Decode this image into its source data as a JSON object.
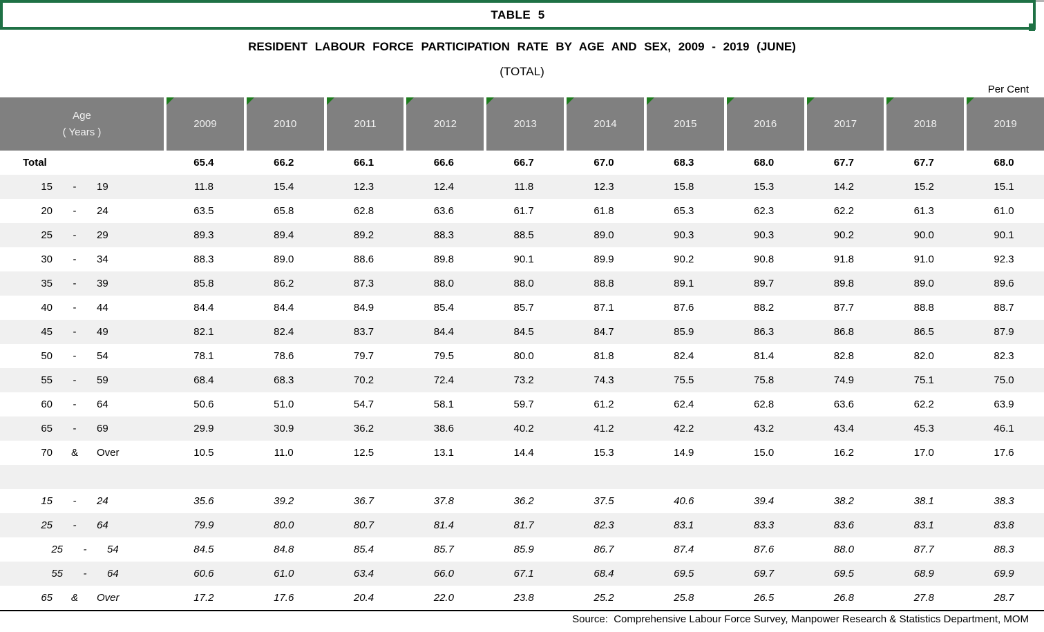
{
  "page": {
    "table_label": "TABLE  5",
    "title": "RESIDENT LABOUR FORCE PARTICIPATION RATE BY AGE AND SEX, 2009 - 2019 (JUNE)",
    "subtitle": "(TOTAL)",
    "unit_label": "Per Cent",
    "source": "Source:  Comprehensive Labour Force Survey, Manpower Research & Statistics Department, MOM"
  },
  "colors": {
    "box_border_green": "#1F7145",
    "corner_triangle_green": "#1E7D1E",
    "header_gray": "#808080",
    "stripe_gray": "#F0F0F0",
    "header_text": "#F2F2F2",
    "body_text": "#000000"
  },
  "table": {
    "age_header": {
      "line1": "Age",
      "line2": "( Years )"
    },
    "years": [
      "2009",
      "2010",
      "2011",
      "2012",
      "2013",
      "2014",
      "2015",
      "2016",
      "2017",
      "2018",
      "2019"
    ],
    "rows": [
      {
        "kind": "total",
        "shaded": false,
        "label": {
          "text": "Total"
        },
        "values": [
          "65.4",
          "66.2",
          "66.1",
          "66.6",
          "66.7",
          "67.0",
          "68.3",
          "68.0",
          "67.7",
          "67.7",
          "68.0"
        ]
      },
      {
        "kind": "age",
        "shaded": true,
        "label": {
          "from": "15",
          "sep": "-",
          "to": "19"
        },
        "values": [
          "11.8",
          "15.4",
          "12.3",
          "12.4",
          "11.8",
          "12.3",
          "15.8",
          "15.3",
          "14.2",
          "15.2",
          "15.1"
        ]
      },
      {
        "kind": "age",
        "shaded": false,
        "label": {
          "from": "20",
          "sep": "-",
          "to": "24"
        },
        "values": [
          "63.5",
          "65.8",
          "62.8",
          "63.6",
          "61.7",
          "61.8",
          "65.3",
          "62.3",
          "62.2",
          "61.3",
          "61.0"
        ]
      },
      {
        "kind": "age",
        "shaded": true,
        "label": {
          "from": "25",
          "sep": "-",
          "to": "29"
        },
        "values": [
          "89.3",
          "89.4",
          "89.2",
          "88.3",
          "88.5",
          "89.0",
          "90.3",
          "90.3",
          "90.2",
          "90.0",
          "90.1"
        ]
      },
      {
        "kind": "age",
        "shaded": false,
        "label": {
          "from": "30",
          "sep": "-",
          "to": "34"
        },
        "values": [
          "88.3",
          "89.0",
          "88.6",
          "89.8",
          "90.1",
          "89.9",
          "90.2",
          "90.8",
          "91.8",
          "91.0",
          "92.3"
        ]
      },
      {
        "kind": "age",
        "shaded": true,
        "label": {
          "from": "35",
          "sep": "-",
          "to": "39"
        },
        "values": [
          "85.8",
          "86.2",
          "87.3",
          "88.0",
          "88.0",
          "88.8",
          "89.1",
          "89.7",
          "89.8",
          "89.0",
          "89.6"
        ]
      },
      {
        "kind": "age",
        "shaded": false,
        "label": {
          "from": "40",
          "sep": "-",
          "to": "44"
        },
        "values": [
          "84.4",
          "84.4",
          "84.9",
          "85.4",
          "85.7",
          "87.1",
          "87.6",
          "88.2",
          "87.7",
          "88.8",
          "88.7"
        ]
      },
      {
        "kind": "age",
        "shaded": true,
        "label": {
          "from": "45",
          "sep": "-",
          "to": "49"
        },
        "values": [
          "82.1",
          "82.4",
          "83.7",
          "84.4",
          "84.5",
          "84.7",
          "85.9",
          "86.3",
          "86.8",
          "86.5",
          "87.9"
        ]
      },
      {
        "kind": "age",
        "shaded": false,
        "label": {
          "from": "50",
          "sep": "-",
          "to": "54"
        },
        "values": [
          "78.1",
          "78.6",
          "79.7",
          "79.5",
          "80.0",
          "81.8",
          "82.4",
          "81.4",
          "82.8",
          "82.0",
          "82.3"
        ]
      },
      {
        "kind": "age",
        "shaded": true,
        "label": {
          "from": "55",
          "sep": "-",
          "to": "59"
        },
        "values": [
          "68.4",
          "68.3",
          "70.2",
          "72.4",
          "73.2",
          "74.3",
          "75.5",
          "75.8",
          "74.9",
          "75.1",
          "75.0"
        ]
      },
      {
        "kind": "age",
        "shaded": false,
        "label": {
          "from": "60",
          "sep": "-",
          "to": "64"
        },
        "values": [
          "50.6",
          "51.0",
          "54.7",
          "58.1",
          "59.7",
          "61.2",
          "62.4",
          "62.8",
          "63.6",
          "62.2",
          "63.9"
        ]
      },
      {
        "kind": "age",
        "shaded": true,
        "label": {
          "from": "65",
          "sep": "-",
          "to": "69"
        },
        "values": [
          "29.9",
          "30.9",
          "36.2",
          "38.6",
          "40.2",
          "41.2",
          "42.2",
          "43.2",
          "43.4",
          "45.3",
          "46.1"
        ]
      },
      {
        "kind": "age",
        "shaded": false,
        "label": {
          "from": "70",
          "sep": "&",
          "to": "Over"
        },
        "values": [
          "10.5",
          "11.0",
          "12.5",
          "13.1",
          "14.4",
          "15.3",
          "14.9",
          "15.0",
          "16.2",
          "17.0",
          "17.6"
        ]
      },
      {
        "kind": "spacer",
        "shaded": true
      },
      {
        "kind": "summary",
        "shaded": false,
        "label": {
          "from": "15",
          "sep": "-",
          "to": "24"
        },
        "values": [
          "35.6",
          "39.2",
          "36.7",
          "37.8",
          "36.2",
          "37.5",
          "40.6",
          "39.4",
          "38.2",
          "38.1",
          "38.3"
        ]
      },
      {
        "kind": "summary",
        "shaded": true,
        "label": {
          "from": "25",
          "sep": "-",
          "to": "64"
        },
        "values": [
          "79.9",
          "80.0",
          "80.7",
          "81.4",
          "81.7",
          "82.3",
          "83.1",
          "83.3",
          "83.6",
          "83.1",
          "83.8"
        ]
      },
      {
        "kind": "summary",
        "shaded": false,
        "indent": true,
        "label": {
          "from": "25",
          "sep": "-",
          "to": "54"
        },
        "values": [
          "84.5",
          "84.8",
          "85.4",
          "85.7",
          "85.9",
          "86.7",
          "87.4",
          "87.6",
          "88.0",
          "87.7",
          "88.3"
        ]
      },
      {
        "kind": "summary",
        "shaded": true,
        "indent": true,
        "label": {
          "from": "55",
          "sep": "-",
          "to": "64"
        },
        "values": [
          "60.6",
          "61.0",
          "63.4",
          "66.0",
          "67.1",
          "68.4",
          "69.5",
          "69.7",
          "69.5",
          "68.9",
          "69.9"
        ]
      },
      {
        "kind": "summary",
        "shaded": false,
        "label": {
          "from": "65",
          "sep": "&",
          "to": "Over"
        },
        "values": [
          "17.2",
          "17.6",
          "20.4",
          "22.0",
          "23.8",
          "25.2",
          "25.8",
          "26.5",
          "26.8",
          "27.8",
          "28.7"
        ]
      }
    ]
  }
}
